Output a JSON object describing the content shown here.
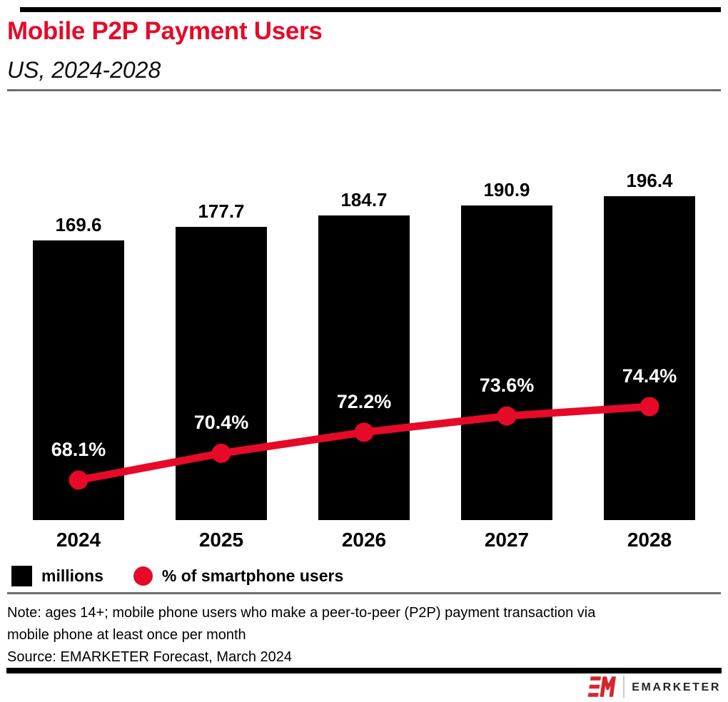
{
  "header": {
    "title": "Mobile P2P Payment Users",
    "subtitle": "US, 2024-2028"
  },
  "legend": {
    "bar_label": "millions",
    "line_label": "% of smartphone users"
  },
  "footer": {
    "note_lines": [
      "Note: ages 14+; mobile phone users who make a peer-to-peer (P2P) payment transaction via",
      "mobile phone at least once per month"
    ],
    "source": "Source: EMARKETER Forecast, March 2024",
    "brand": "EMARKETER"
  },
  "colors": {
    "accent_red": "#e60a28",
    "bar_black": "#000000",
    "rule_gray": "#6e6e6e",
    "logo_red": "#d6252c",
    "pct_label_white": "#ffffff"
  },
  "chart_data": {
    "type": "bar",
    "subtype": "combo bar + line",
    "title": "Mobile P2P Payment Users",
    "subtitle": "US, 2024-2028",
    "categories": [
      "2024",
      "2025",
      "2026",
      "2027",
      "2028"
    ],
    "series": [
      {
        "name": "millions",
        "type": "bar",
        "color": "#000000",
        "values": [
          169.6,
          177.7,
          184.7,
          190.9,
          196.4
        ],
        "data_labels": [
          "169.6",
          "177.7",
          "184.7",
          "190.9",
          "196.4"
        ]
      },
      {
        "name": "% of smartphone users",
        "type": "line",
        "color": "#e60a28",
        "values": [
          68.1,
          70.4,
          72.2,
          73.6,
          74.4
        ],
        "data_labels": [
          "68.1%",
          "70.4%",
          "72.2%",
          "73.6%",
          "74.4%"
        ]
      }
    ],
    "axes": {
      "x_labels": [
        "2024",
        "2025",
        "2026",
        "2027",
        "2028"
      ],
      "bar_axis_min": 0,
      "y_axis_visible": false,
      "grid": false
    },
    "legend_position": "bottom",
    "data_labels_visible": true
  }
}
